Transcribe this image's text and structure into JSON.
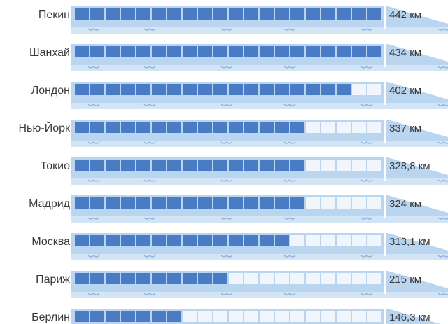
{
  "chart_data": {
    "type": "bar",
    "orientation": "horizontal",
    "categories": [
      "Пекин",
      "Шанхай",
      "Лондон",
      "Нью-Йорк",
      "Токио",
      "Мадрид",
      "Москва",
      "Париж",
      "Берлин"
    ],
    "values": [
      442,
      434,
      402,
      337,
      328.8,
      324,
      313.1,
      215,
      146.3
    ],
    "value_labels": [
      "442 км",
      "434 км",
      "402 км",
      "337 км",
      "328,8 км",
      "324 км",
      "313,1 км",
      "215 км",
      "146,3 км"
    ],
    "unit": "км",
    "xlim": [
      0,
      442
    ],
    "grid": false,
    "legend": "none"
  },
  "colors": {
    "filled": "#4a7cc6",
    "empty": "#f1f6fc",
    "train_body": "#b9d5f0",
    "train_dark": "#8fb6e0",
    "label_text": "#3a3a3a",
    "value_text": "#3a3a3a"
  }
}
